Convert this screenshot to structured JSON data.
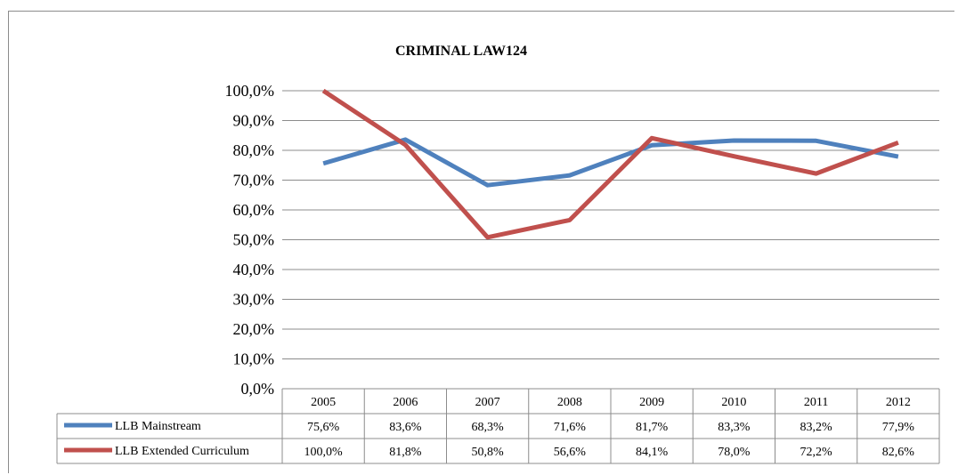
{
  "chart_data": {
    "type": "line",
    "title": "CRIMINAL LAW124",
    "xlabel": "",
    "ylabel": "",
    "categories": [
      "2005",
      "2006",
      "2007",
      "2008",
      "2009",
      "2010",
      "2011",
      "2012"
    ],
    "y_ticks": [
      "0,0%",
      "10,0%",
      "20,0%",
      "30,0%",
      "40,0%",
      "50,0%",
      "60,0%",
      "70,0%",
      "80,0%",
      "90,0%",
      "100,0%"
    ],
    "ylim": [
      0,
      100
    ],
    "grid": true,
    "legend": "data-table",
    "series": [
      {
        "name": "LLB Mainstream",
        "color": "#4f81bd",
        "values": [
          75.6,
          83.6,
          68.3,
          71.6,
          81.7,
          83.3,
          83.2,
          77.9
        ],
        "labels": [
          "75,6%",
          "83,6%",
          "68,3%",
          "71,6%",
          "81,7%",
          "83,3%",
          "83,2%",
          "77,9%"
        ]
      },
      {
        "name": "LLB Extended Curriculum",
        "color": "#c0504d",
        "values": [
          100.0,
          81.8,
          50.8,
          56.6,
          84.1,
          78.0,
          72.2,
          82.6
        ],
        "labels": [
          "100,0%",
          "81,8%",
          "50,8%",
          "56,6%",
          "84,1%",
          "78,0%",
          "72,2%",
          "82,6%"
        ]
      }
    ]
  }
}
